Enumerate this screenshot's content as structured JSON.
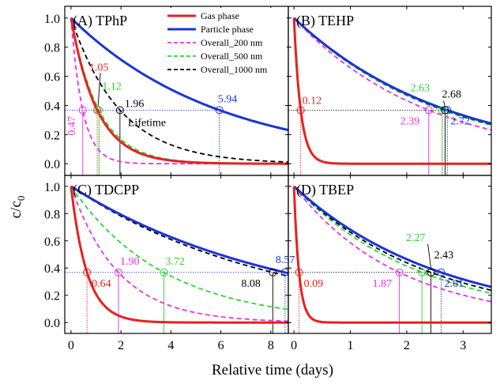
{
  "figure": {
    "ylabel": "c/c",
    "ylabel_sub": "0",
    "xlabel": "Relative time (days)",
    "lifetime_label": "Lifetime"
  },
  "legend": [
    {
      "name": "Gas phase",
      "color": "#e8201e",
      "dash": "solid",
      "width": 3
    },
    {
      "name": "Particle phase",
      "color": "#1c33d4",
      "dash": "solid",
      "width": 3
    },
    {
      "name": "Overall_200 nm",
      "color": "#ec2ee6",
      "dash": "dashed",
      "width": 1.8
    },
    {
      "name": "Overall_500 nm",
      "color": "#2bd62b",
      "dash": "dashed",
      "width": 1.8
    },
    {
      "name": "Overall_1000 nm",
      "color": "#000000",
      "dash": "dashed",
      "width": 1.8
    }
  ],
  "chart_data": [
    {
      "type": "line",
      "title": "(A) TPhP",
      "xlim": [
        -0.1,
        3.6
      ],
      "ylim": [
        -0.08,
        1.08
      ],
      "x_scale": "days",
      "note": "top-left panel; horizontal axis shares the bottom scale up to 8 and is stretched",
      "xlim_days": [
        -0.25,
        8.7
      ],
      "threshold": 0.3679,
      "lifetimes": {
        "gas": 1.05,
        "particle": 5.94,
        "overall_200": 0.47,
        "overall_500": 1.12,
        "overall_1000": 1.96
      },
      "labels": [
        {
          "text": "1.05",
          "series": "gas"
        },
        {
          "text": "1.12",
          "series": "overall_500"
        },
        {
          "text": "1.96",
          "series": "overall_1000"
        },
        {
          "text": "5.94",
          "series": "particle"
        },
        {
          "text": "0.47",
          "series": "overall_200"
        }
      ]
    },
    {
      "type": "line",
      "title": "(B) TEHP",
      "xlim": [
        -0.1,
        3.5
      ],
      "ylim": [
        -0.08,
        1.08
      ],
      "threshold": 0.3679,
      "lifetimes": {
        "gas": 0.12,
        "particle": 2.72,
        "overall_200": 2.39,
        "overall_500": 2.63,
        "overall_1000": 2.68
      },
      "labels": [
        {
          "text": "0.12",
          "series": "gas"
        },
        {
          "text": "2.63",
          "series": "overall_500"
        },
        {
          "text": "2.68",
          "series": "overall_1000"
        },
        {
          "text": "2.39",
          "series": "overall_200"
        },
        {
          "text": "2.72",
          "series": "particle"
        }
      ]
    },
    {
      "type": "line",
      "title": "(C) TDCPP",
      "xlim": [
        -0.25,
        8.7
      ],
      "ylim": [
        -0.08,
        1.08
      ],
      "threshold": 0.3679,
      "lifetimes": {
        "gas": 0.64,
        "particle": 8.57,
        "overall_200": 1.9,
        "overall_500": 3.72,
        "overall_1000": 8.08
      },
      "labels": [
        {
          "text": "0.64",
          "series": "gas"
        },
        {
          "text": "1.90",
          "series": "overall_200"
        },
        {
          "text": "3.72",
          "series": "overall_500"
        },
        {
          "text": "8.08",
          "series": "overall_1000"
        },
        {
          "text": "8.57",
          "series": "particle"
        }
      ]
    },
    {
      "type": "line",
      "title": "(D) TBEP",
      "xlim": [
        -0.1,
        3.5
      ],
      "ylim": [
        -0.08,
        1.08
      ],
      "threshold": 0.3679,
      "lifetimes": {
        "gas": 0.09,
        "particle": 2.61,
        "overall_200": 1.87,
        "overall_500": 2.27,
        "overall_1000": 2.43
      },
      "labels": [
        {
          "text": "0.09",
          "series": "gas"
        },
        {
          "text": "1.87",
          "series": "overall_200"
        },
        {
          "text": "2.27",
          "series": "overall_500"
        },
        {
          "text": "2.43",
          "series": "overall_1000"
        },
        {
          "text": "2.61",
          "series": "particle"
        }
      ]
    }
  ],
  "axes": {
    "y_ticks": [
      "0.0",
      "0.2",
      "0.4",
      "0.6",
      "0.8",
      "1.0"
    ],
    "y_tick_values": [
      0,
      0.2,
      0.4,
      0.6,
      0.8,
      1.0
    ],
    "x_ticks_days": [
      "0",
      "2",
      "4",
      "6",
      "8"
    ],
    "x_tick_values_days": [
      0,
      2,
      4,
      6,
      8
    ],
    "x_ticks_short": [
      "0",
      "1",
      "2",
      "3"
    ],
    "x_tick_values_short": [
      0,
      1,
      2,
      3
    ]
  }
}
